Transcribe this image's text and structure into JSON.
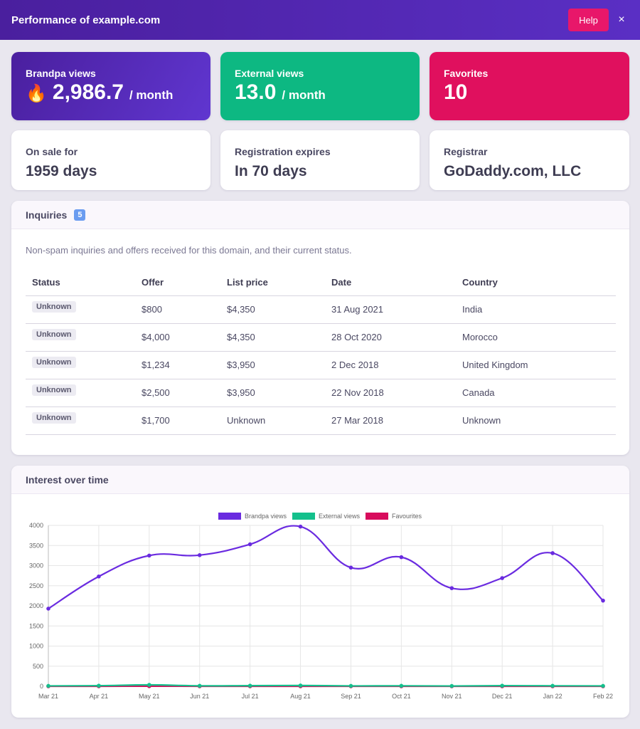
{
  "header": {
    "title": "Performance of example.com",
    "help_label": "Help",
    "close_glyph": "×"
  },
  "stats": {
    "brandpa": {
      "label": "Brandpa views",
      "icon": "🔥",
      "value": "2,986.7",
      "suffix": "/ month",
      "color": "#4f27b0"
    },
    "external": {
      "label": "External views",
      "value": "13.0",
      "suffix": "/ month",
      "color": "#0db882"
    },
    "favorites": {
      "label": "Favorites",
      "value": "10",
      "color": "#e0105e"
    },
    "on_sale": {
      "label": "On sale for",
      "value": "1959 days"
    },
    "expires": {
      "label": "Registration expires",
      "value": "In 70 days"
    },
    "registrar": {
      "label": "Registrar",
      "value": "GoDaddy.com, LLC"
    }
  },
  "inquiries": {
    "title": "Inquiries",
    "count": "5",
    "description": "Non-spam inquiries and offers received for this domain, and their current status.",
    "columns": [
      "Status",
      "Offer",
      "List price",
      "Date",
      "Country"
    ],
    "rows": [
      [
        "Unknown",
        "$800",
        "$4,350",
        "31 Aug 2021",
        "India"
      ],
      [
        "Unknown",
        "$4,000",
        "$4,350",
        "28 Oct 2020",
        "Morocco"
      ],
      [
        "Unknown",
        "$1,234",
        "$3,950",
        "2 Dec 2018",
        "United Kingdom"
      ],
      [
        "Unknown",
        "$2,500",
        "$3,950",
        "22 Nov 2018",
        "Canada"
      ],
      [
        "Unknown",
        "$1,700",
        "Unknown",
        "27 Mar 2018",
        "Unknown"
      ]
    ]
  },
  "interest": {
    "title": "Interest over time"
  },
  "chart_data": {
    "type": "line",
    "x": [
      "Mar 21",
      "Apr 21",
      "May 21",
      "Jun 21",
      "Jul 21",
      "Aug 21",
      "Sep 21",
      "Oct 21",
      "Nov 21",
      "Dec 21",
      "Jan 22",
      "Feb 22"
    ],
    "ylim": [
      0,
      4000
    ],
    "yticks": [
      0,
      500,
      1000,
      1500,
      2000,
      2500,
      3000,
      3500,
      4000
    ],
    "grid": true,
    "legend": "top-center",
    "series": [
      {
        "name": "Brandpa views",
        "color": "#6a2be0",
        "values": [
          1930,
          2730,
          3250,
          3260,
          3530,
          3970,
          2950,
          3210,
          2440,
          2690,
          3310,
          2130
        ]
      },
      {
        "name": "External views",
        "color": "#14c08c",
        "values": [
          10,
          15,
          35,
          12,
          15,
          20,
          10,
          12,
          8,
          15,
          12,
          10
        ]
      },
      {
        "name": "Favourites",
        "color": "#d80c5c",
        "values": [
          0,
          0,
          2,
          0,
          0,
          0,
          0,
          0,
          0,
          0,
          0,
          0
        ]
      }
    ]
  }
}
